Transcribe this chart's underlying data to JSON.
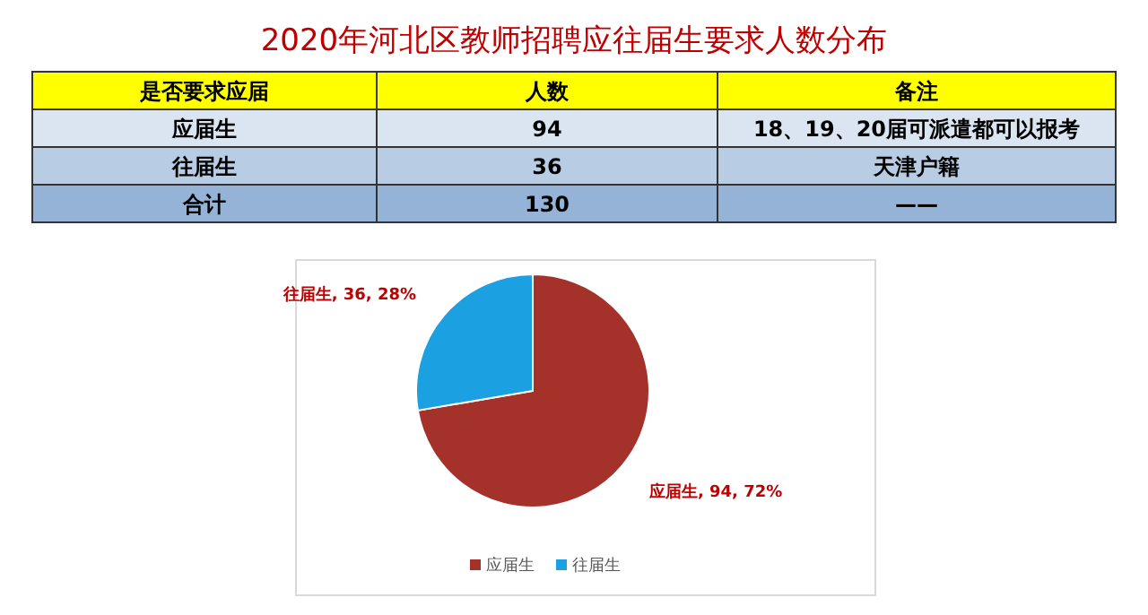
{
  "chart_data": {
    "type": "pie",
    "title": "2020年河北区教师招聘应往届生要求人数分布",
    "categories": [
      "应届生",
      "往届生"
    ],
    "values": [
      94,
      36
    ],
    "colors": [
      "#a5312b",
      "#1ba1e2"
    ],
    "value_labels": [
      "应届生, 94, 72%",
      "往届生, 36, 28%"
    ],
    "legend": "bottom",
    "annotations": [
      "是否要求应届",
      "人数",
      "备注",
      "应届生",
      "94",
      "18、19、20届可派遣都可以报考",
      "往届生",
      "36",
      "天津户籍",
      "合计",
      "130",
      "——"
    ]
  }
}
